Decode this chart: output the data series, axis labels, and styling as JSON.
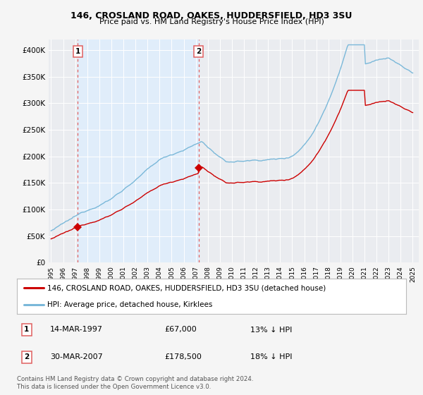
{
  "title": "146, CROSLAND ROAD, OAKES, HUDDERSFIELD, HD3 3SU",
  "subtitle": "Price paid vs. HM Land Registry's House Price Index (HPI)",
  "legend_line1": "146, CROSLAND ROAD, OAKES, HUDDERSFIELD, HD3 3SU (detached house)",
  "legend_line2": "HPI: Average price, detached house, Kirklees",
  "footnote": "Contains HM Land Registry data © Crown copyright and database right 2024.\nThis data is licensed under the Open Government Licence v3.0.",
  "sale1_label": "1",
  "sale1_date": "14-MAR-1997",
  "sale1_price": "£67,000",
  "sale1_hpi": "13% ↓ HPI",
  "sale1_year": 1997.2,
  "sale1_value": 67000,
  "sale2_label": "2",
  "sale2_date": "30-MAR-2007",
  "sale2_price": "£178,500",
  "sale2_hpi": "18% ↓ HPI",
  "sale2_year": 2007.25,
  "sale2_value": 178500,
  "hpi_color": "#7ab8d9",
  "price_color": "#cc0000",
  "dashed_color": "#e06060",
  "shade_color": "#ddeeff",
  "bg_color": "#f5f5f5",
  "plot_bg": "#eaecf0",
  "ylim_min": 0,
  "ylim_max": 420000,
  "yticks": [
    0,
    50000,
    100000,
    150000,
    200000,
    250000,
    300000,
    350000,
    400000
  ],
  "ytick_labels": [
    "£0",
    "£50K",
    "£100K",
    "£150K",
    "£200K",
    "£250K",
    "£300K",
    "£350K",
    "£400K"
  ],
  "xmin": 1994.8,
  "xmax": 2025.5
}
